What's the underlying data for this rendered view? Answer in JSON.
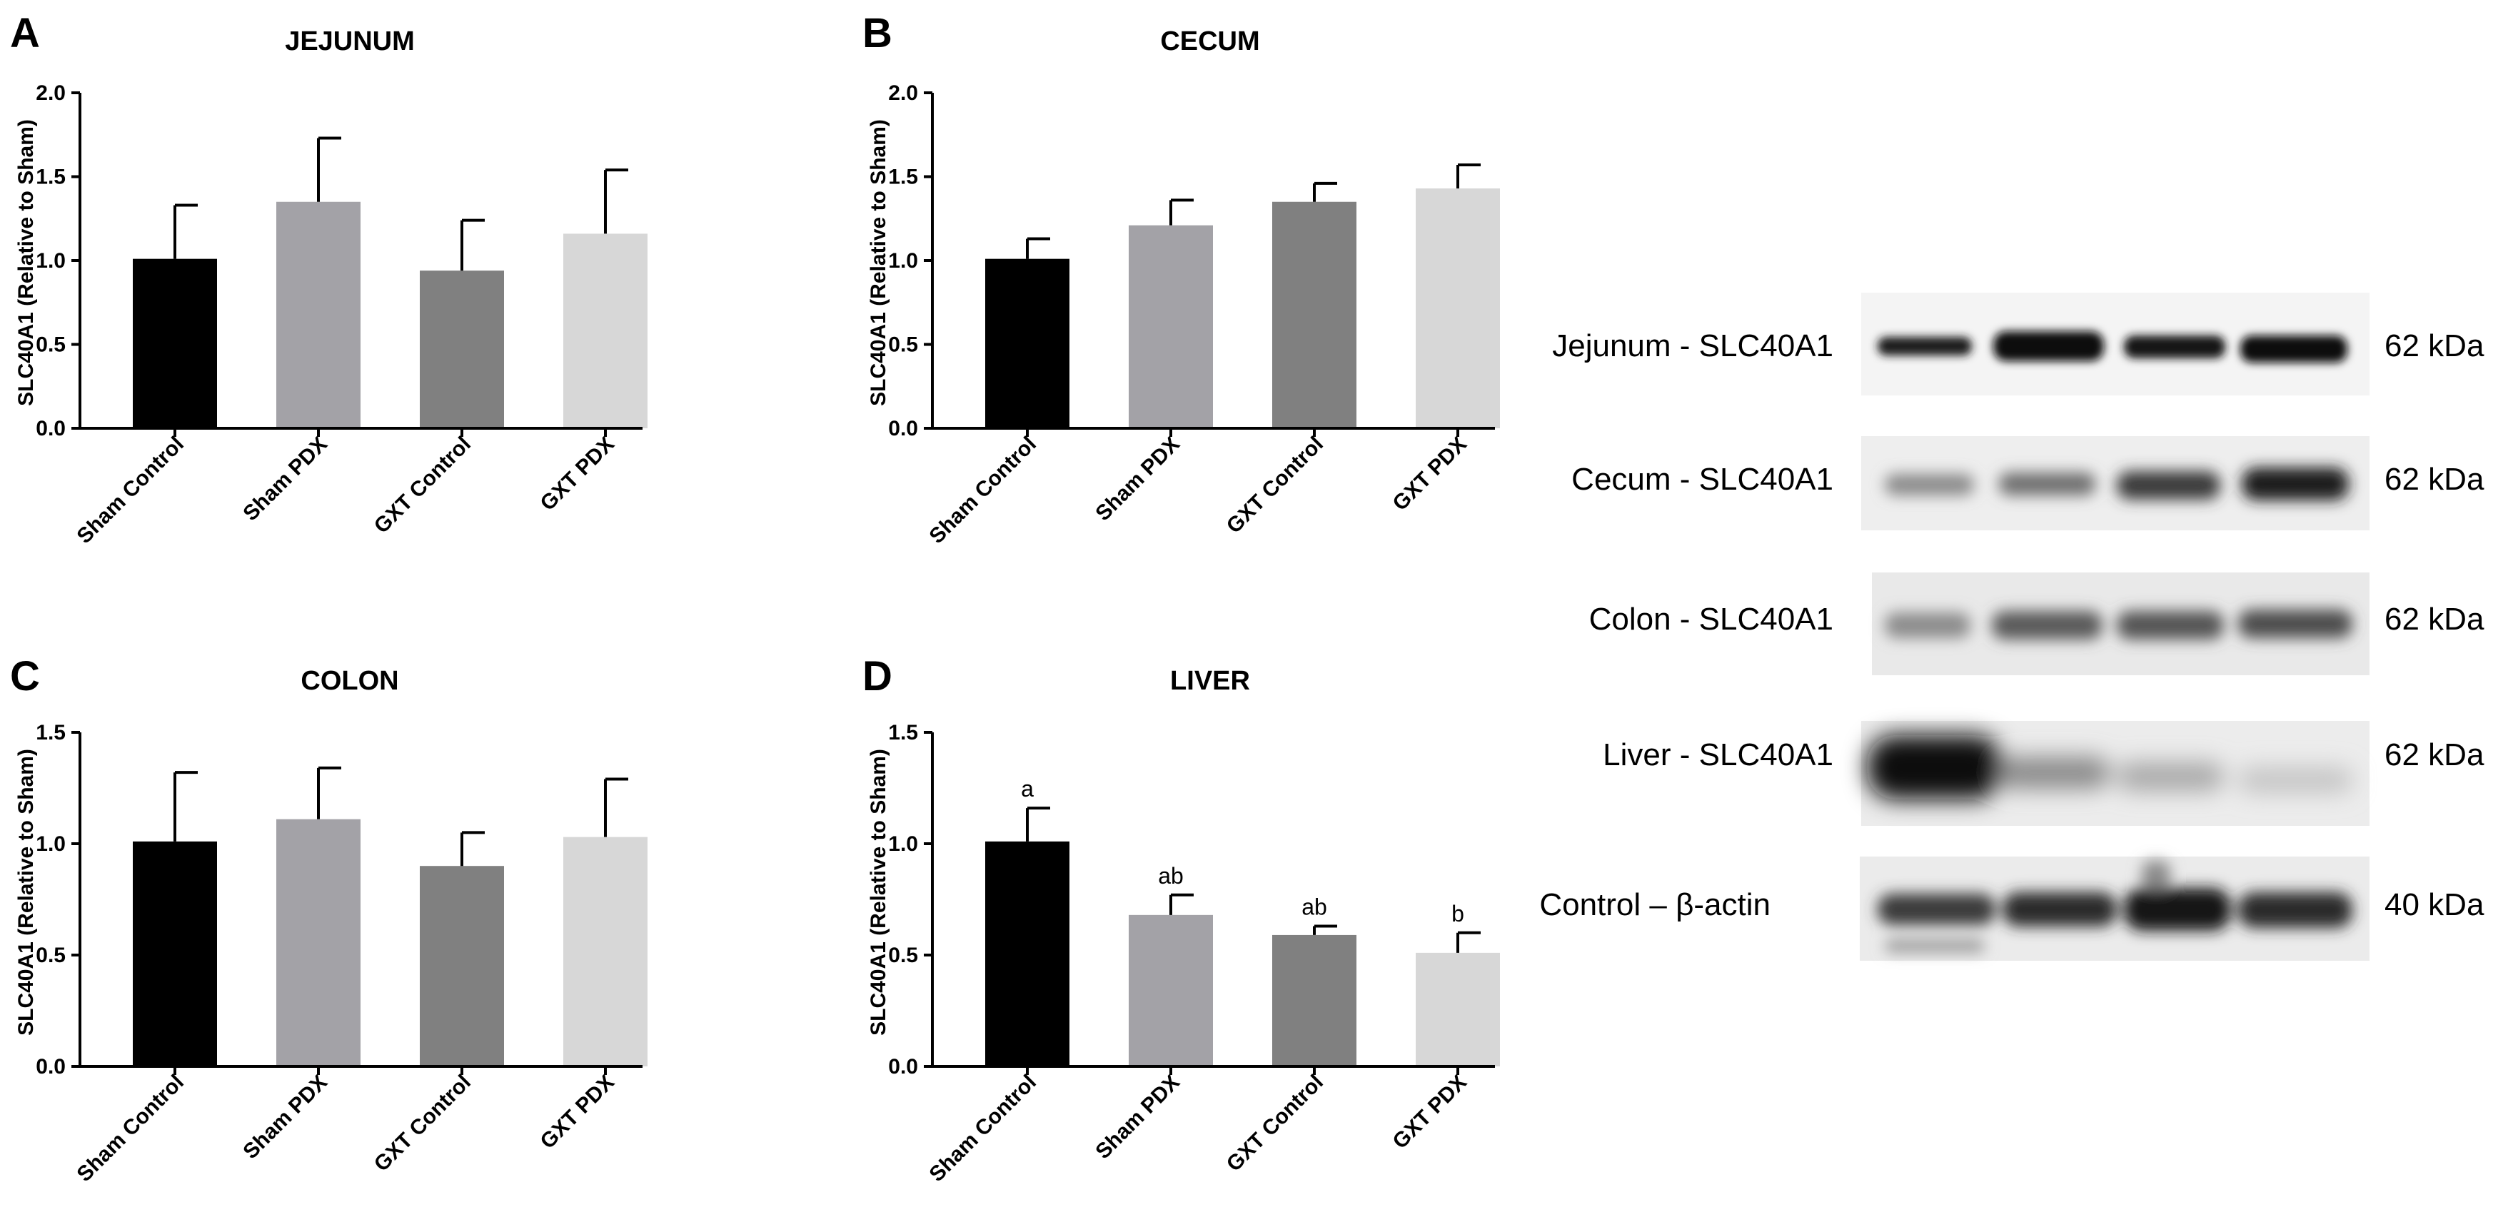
{
  "colors": {
    "sham_control": "#000000",
    "sham_pdx": "#a3a2a7",
    "gxt_control": "#808080",
    "gxt_pdx": "#d7d7d7"
  },
  "chart_data": [
    {
      "type": "bar",
      "panel": "A",
      "title": "JEJUNUM",
      "ylabel": "SLC40A1 (Relative to Sham)",
      "ylim": [
        0,
        2.0
      ],
      "yticks": [
        "0.0",
        "0.5",
        "1.0",
        "1.5",
        "2.0"
      ],
      "categories": [
        "Sham Control",
        "Sham PDX",
        "GXT Control",
        "GXT PDX"
      ],
      "values": [
        1.01,
        1.35,
        0.94,
        1.16
      ],
      "errors": [
        0.32,
        0.38,
        0.3,
        0.38
      ],
      "annotations": [
        "",
        "",
        "",
        ""
      ]
    },
    {
      "type": "bar",
      "panel": "B",
      "title": "CECUM",
      "ylabel": "SLC40A1 (Relative to Sham)",
      "ylim": [
        0,
        2.0
      ],
      "yticks": [
        "0.0",
        "0.5",
        "1.0",
        "1.5",
        "2.0"
      ],
      "categories": [
        "Sham Control",
        "Sham PDX",
        "GXT Control",
        "GXT PDX"
      ],
      "values": [
        1.01,
        1.21,
        1.35,
        1.43
      ],
      "errors": [
        0.12,
        0.15,
        0.11,
        0.14
      ],
      "annotations": [
        "",
        "",
        "",
        ""
      ]
    },
    {
      "type": "bar",
      "panel": "C",
      "title": "COLON",
      "ylabel": "SLC40A1 (Relative to Sham)",
      "ylim": [
        0,
        1.5
      ],
      "yticks": [
        "0.0",
        "0.5",
        "1.0",
        "1.5"
      ],
      "categories": [
        "Sham Control",
        "Sham PDX",
        "GXT Control",
        "GXT PDX"
      ],
      "values": [
        1.01,
        1.11,
        0.9,
        1.03
      ],
      "errors": [
        0.31,
        0.23,
        0.15,
        0.26
      ],
      "annotations": [
        "",
        "",
        "",
        ""
      ]
    },
    {
      "type": "bar",
      "panel": "D",
      "title": "LIVER",
      "ylabel": "SLC40A1 (Relative to Sham)",
      "ylim": [
        0,
        1.5
      ],
      "yticks": [
        "0.0",
        "0.5",
        "1.0",
        "1.5"
      ],
      "categories": [
        "Sham Control",
        "Sham PDX",
        "GXT Control",
        "GXT PDX"
      ],
      "values": [
        1.01,
        0.68,
        0.59,
        0.51
      ],
      "errors": [
        0.15,
        0.09,
        0.04,
        0.09
      ],
      "annotations": [
        "a",
        "ab",
        "ab",
        "b"
      ]
    }
  ],
  "western_blot": {
    "bands": [
      {
        "label": "Jejunum - SLC40A1",
        "size": "62 kDa"
      },
      {
        "label": "Cecum - SLC40A1",
        "size": "62 kDa"
      },
      {
        "label": "Colon - SLC40A1",
        "size": "62 kDa"
      },
      {
        "label": "Liver - SLC40A1",
        "size": "62 kDa"
      },
      {
        "label": "Control – β-actin",
        "size": "40 kDa"
      }
    ]
  }
}
